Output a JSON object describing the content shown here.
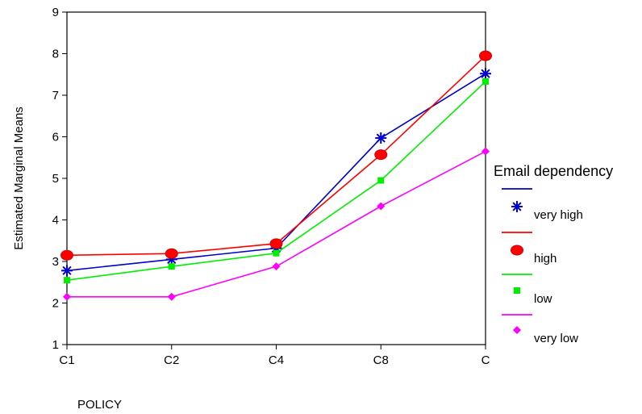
{
  "chart_data": {
    "type": "line",
    "ylabel": "Estimated Marginal Means",
    "xlabel": "POLICY",
    "categories": [
      "C1",
      "C2",
      "C4",
      "C8",
      "C"
    ],
    "ylim": [
      1,
      9
    ],
    "yticks": [
      1,
      2,
      3,
      4,
      5,
      6,
      7,
      8,
      9
    ],
    "grid": false,
    "legend": {
      "title": "Email dependency",
      "placement": "right"
    },
    "series": [
      {
        "name": "very high",
        "color": "#0000cc",
        "marker": "asterisk",
        "values": [
          2.78,
          3.05,
          3.32,
          5.97,
          7.52
        ]
      },
      {
        "name": "high",
        "color": "#ff0000",
        "marker": "circle",
        "values": [
          3.15,
          3.19,
          3.43,
          5.57,
          7.95
        ]
      },
      {
        "name": "low",
        "color": "#00ee00",
        "marker": "square",
        "values": [
          2.55,
          2.88,
          3.2,
          4.95,
          7.33
        ]
      },
      {
        "name": "very low",
        "color": "#ff00ff",
        "marker": "diamond",
        "values": [
          2.15,
          2.15,
          2.88,
          4.33,
          5.65
        ]
      }
    ]
  }
}
